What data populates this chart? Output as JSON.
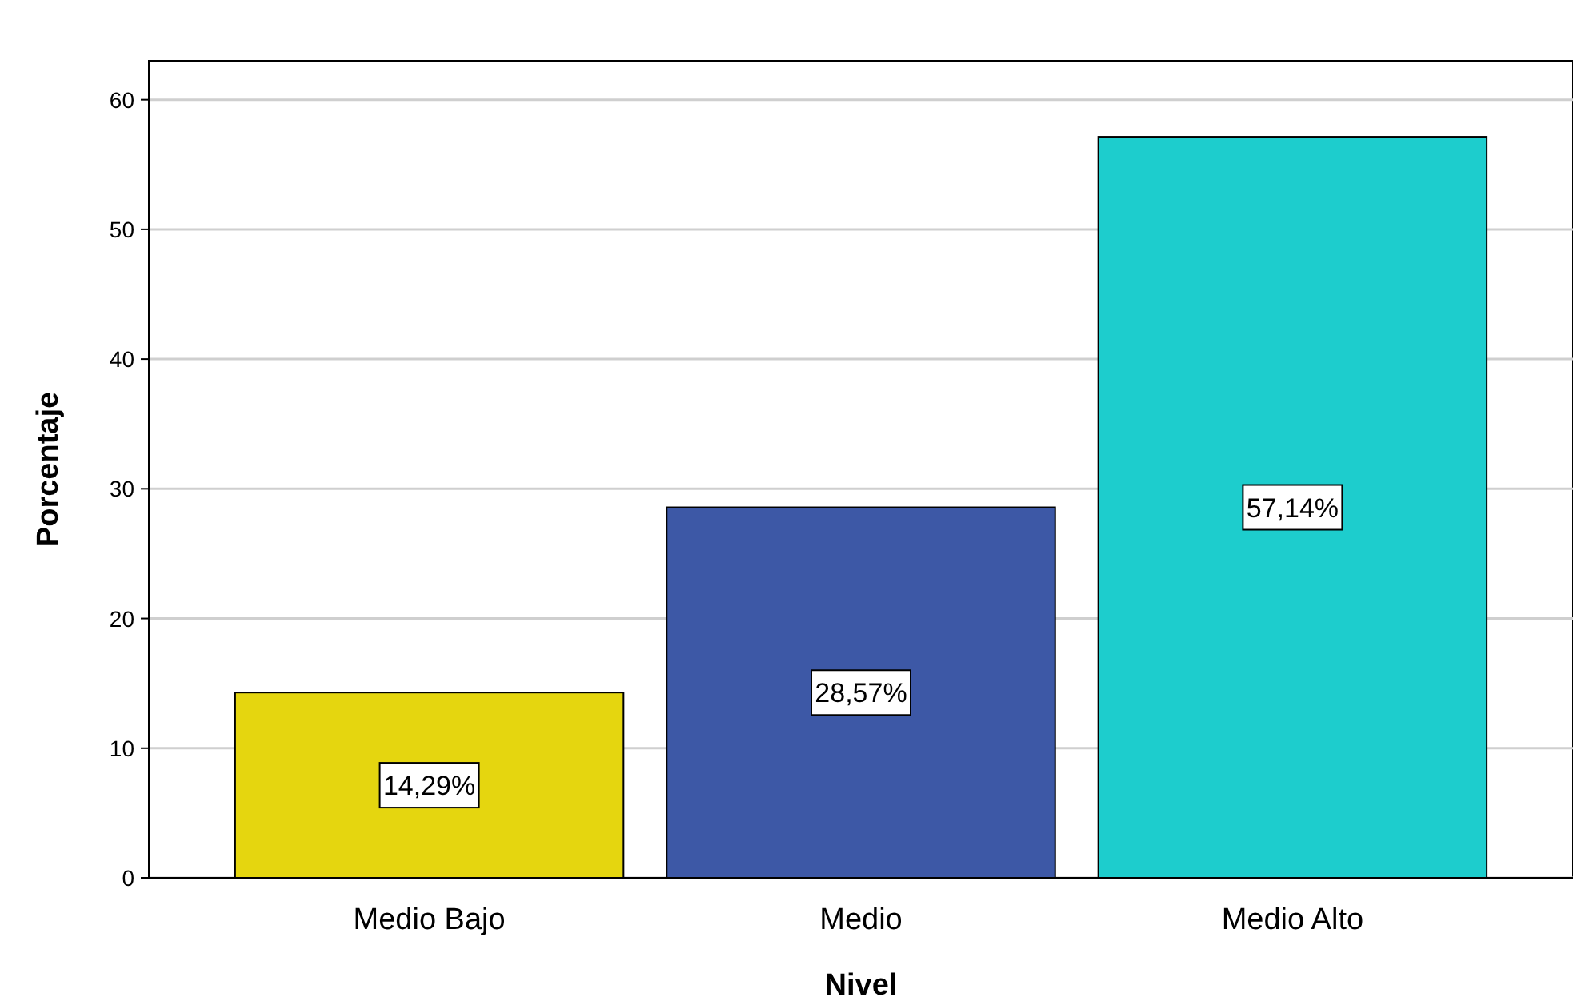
{
  "chart_data": {
    "type": "bar",
    "xlabel": "Nivel",
    "ylabel": "Porcentaje",
    "categories": [
      "Medio Bajo",
      "Medio",
      "Medio Alto"
    ],
    "values": [
      14.29,
      28.57,
      57.14
    ],
    "colors": [
      "#e5d60f",
      "#3d58a6",
      "#1dcdcd"
    ],
    "value_labels": [
      "14,29%",
      "28,57%",
      "57,14%"
    ],
    "ylim": [
      0,
      63
    ],
    "yticks": [
      0,
      10,
      20,
      30,
      40,
      50,
      60
    ],
    "grid": "y"
  }
}
